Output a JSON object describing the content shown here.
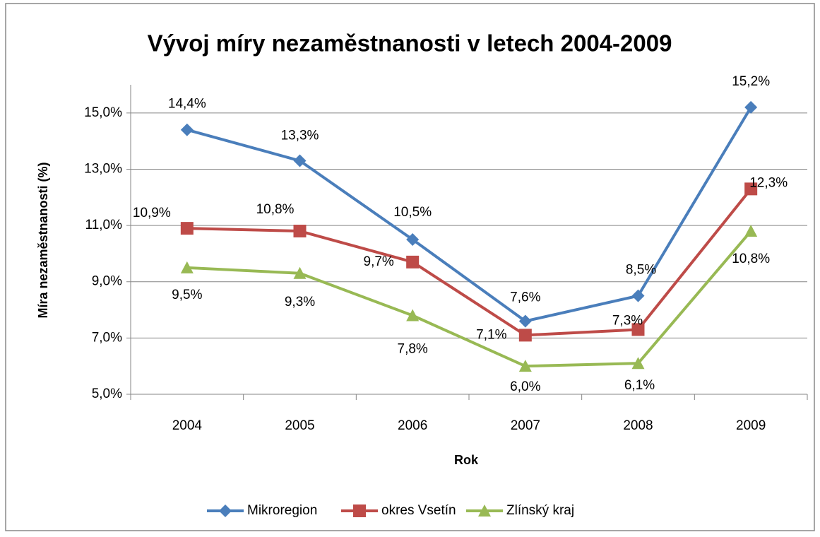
{
  "chart_data": {
    "type": "line",
    "title": "Vývoj míry nezaměstnanosti  v letech 2004-2009",
    "x_label": "Rok",
    "y_label": "Míra nezaměstnanosti (%)",
    "categories": [
      "2004",
      "2005",
      "2006",
      "2007",
      "2008",
      "2009"
    ],
    "ylim": [
      5,
      16
    ],
    "yticks": [
      {
        "value": 5,
        "label": "5,0%"
      },
      {
        "value": 7,
        "label": "7,0%"
      },
      {
        "value": 9,
        "label": "9,0%"
      },
      {
        "value": 11,
        "label": "11,0%"
      },
      {
        "value": 13,
        "label": "13,0%"
      },
      {
        "value": 15,
        "label": "15,0%"
      }
    ],
    "grid": true,
    "legend": "bottom",
    "series": [
      {
        "name": "Mikroregion",
        "color": "#4a7ebb",
        "marker": "diamond",
        "values": [
          14.4,
          13.3,
          10.5,
          7.6,
          8.5,
          15.2
        ],
        "value_labels": [
          "14,4%",
          "13,3%",
          "10,5%",
          "7,6%",
          "8,5%",
          "15,2%"
        ]
      },
      {
        "name": "okres Vsetín",
        "color": "#be4b48",
        "marker": "square",
        "values": [
          10.9,
          10.8,
          9.7,
          7.1,
          7.3,
          12.3
        ],
        "value_labels": [
          "10,9%",
          "10,8%",
          "9,7%",
          "7,1%",
          "7,3%",
          "12,3%"
        ]
      },
      {
        "name": "Zlínský kraj",
        "color": "#98b954",
        "marker": "triangle",
        "values": [
          9.5,
          9.3,
          7.8,
          6.0,
          6.1,
          10.8
        ],
        "value_labels": [
          "9,5%",
          "9,3%",
          "7,8%",
          "6,0%",
          "6,1%",
          "10,8%"
        ]
      }
    ]
  }
}
